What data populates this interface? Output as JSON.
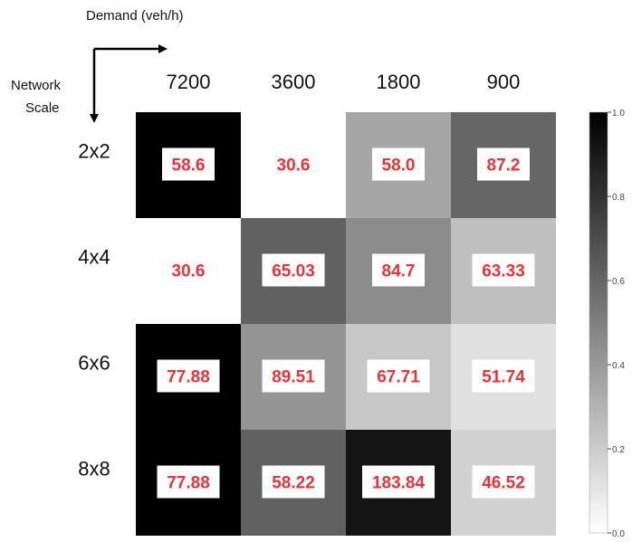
{
  "chart_data": {
    "type": "heatmap",
    "x_axis_title": "Demand (veh/h)",
    "y_axis_title": "Network Scale",
    "columns": [
      "7200",
      "3600",
      "1800",
      "900"
    ],
    "rows": [
      "2x2",
      "4x4",
      "6x6",
      "8x8"
    ],
    "cell_labels": [
      [
        "58.6",
        "30.6",
        "58.0",
        "87.2"
      ],
      [
        "30.6",
        "65.03",
        "84.7",
        "63.33"
      ],
      [
        "77.88",
        "89.51",
        "67.71",
        "51.74"
      ],
      [
        "77.88",
        "58.22",
        "183.84",
        "46.52"
      ]
    ],
    "intensity": [
      [
        1.0,
        0.0,
        0.35,
        0.6
      ],
      [
        0.0,
        0.62,
        0.45,
        0.25
      ],
      [
        1.0,
        0.42,
        0.22,
        0.12
      ],
      [
        1.0,
        0.62,
        0.92,
        0.18
      ]
    ],
    "colormap": "Greys",
    "colorbar": {
      "range": [
        0.0,
        1.0
      ],
      "ticks": [
        "0.0",
        "0.2",
        "0.4",
        "0.6",
        "0.8",
        "1.0"
      ]
    },
    "label_color": "#e8333a"
  }
}
